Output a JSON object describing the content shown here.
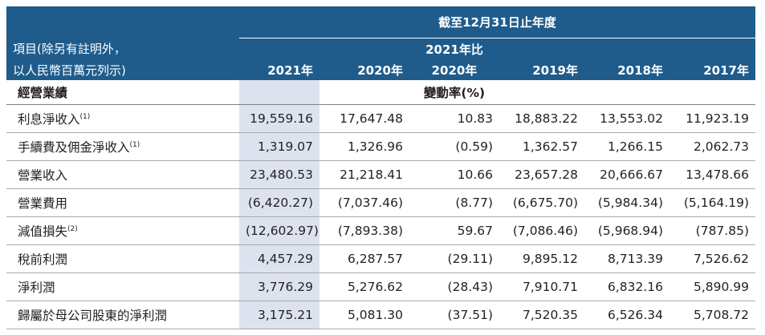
{
  "header": {
    "period_label": "截至12月31日止年度",
    "item_label_line1": "項目(除另有註明外，",
    "item_label_line2": "以人民幣百萬元列示)",
    "change_top": "2021年比",
    "columns": [
      "2021年",
      "2020年",
      "2020年",
      "2019年",
      "2018年",
      "2017年"
    ]
  },
  "section": {
    "title": "經營業績",
    "change_unit": "變動率(%)"
  },
  "rows": [
    {
      "label": "利息淨收入",
      "note": "(1)",
      "values": [
        "19,559.16",
        "17,647.48",
        "10.83",
        "18,883.22",
        "13,553.02",
        "11,923.19"
      ]
    },
    {
      "label": "手續費及佣金淨收入",
      "note": "(1)",
      "values": [
        "1,319.07",
        "1,326.96",
        "(0.59)",
        "1,362.57",
        "1,266.15",
        "2,062.73"
      ]
    },
    {
      "label": "營業收入",
      "note": "",
      "values": [
        "23,480.53",
        "21,218.41",
        "10.66",
        "23,657.28",
        "20,666.67",
        "13,478.66"
      ]
    },
    {
      "label": "營業費用",
      "note": "",
      "values": [
        "(6,420.27)",
        "(7,037.46)",
        "(8.77)",
        "(6,675.70)",
        "(5,984.34)",
        "(5,164.19)"
      ]
    },
    {
      "label": "減值損失",
      "note": "(2)",
      "values": [
        "(12,602.97)",
        "(7,893.38)",
        "59.67",
        "(7,086.46)",
        "(5,968.94)",
        "(787.85)"
      ]
    },
    {
      "label": "稅前利潤",
      "note": "",
      "values": [
        "4,457.29",
        "6,287.57",
        "(29.11)",
        "9,895.12",
        "8,713.39",
        "7,526.62"
      ]
    },
    {
      "label": "淨利潤",
      "note": "",
      "values": [
        "3,776.29",
        "5,276.62",
        "(28.43)",
        "7,910.71",
        "6,832.16",
        "5,890.99"
      ]
    },
    {
      "label": "歸屬於母公司股東的淨利潤",
      "note": "",
      "values": [
        "3,175.21",
        "5,081.30",
        "(37.51)",
        "7,520.35",
        "6,526.34",
        "5,708.72"
      ]
    }
  ]
}
